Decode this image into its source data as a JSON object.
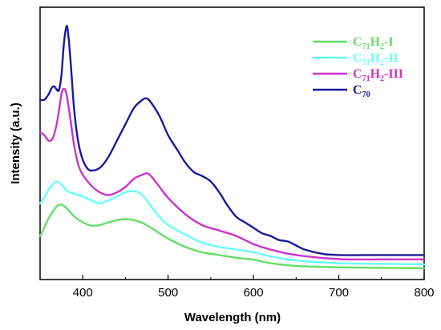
{
  "chart_data": {
    "type": "line",
    "xlabel": "Wavelength (nm)",
    "ylabel": "Intensity (a.u.)",
    "xlim": [
      350,
      800
    ],
    "ylim": [
      0,
      1
    ],
    "x_ticks": [
      400,
      500,
      600,
      700,
      800
    ],
    "y_ticks_shown": false,
    "grid": false,
    "legend": {
      "position": "top-right"
    },
    "series": [
      {
        "name": "C71H2-I",
        "label": {
          "base": "C",
          "sub1": "71",
          "mid": "H",
          "sub2": "2",
          "suffix": "-I"
        },
        "color": "#66dd66",
        "x": [
          350,
          355,
          360,
          365,
          370,
          375,
          380,
          385,
          390,
          395,
          400,
          405,
          410,
          420,
          430,
          440,
          450,
          460,
          470,
          480,
          490,
          500,
          520,
          540,
          560,
          580,
          600,
          620,
          650,
          700,
          750,
          800
        ],
        "y": [
          0.16,
          0.19,
          0.225,
          0.25,
          0.27,
          0.275,
          0.265,
          0.248,
          0.232,
          0.22,
          0.21,
          0.203,
          0.198,
          0.2,
          0.21,
          0.218,
          0.222,
          0.218,
          0.208,
          0.19,
          0.17,
          0.15,
          0.12,
          0.1,
          0.09,
          0.08,
          0.073,
          0.06,
          0.05,
          0.045,
          0.043,
          0.042
        ]
      },
      {
        "name": "C71H2-II",
        "label": {
          "base": "C",
          "sub1": "71",
          "mid": "H",
          "sub2": "2",
          "suffix": "-II"
        },
        "color": "#66ffff",
        "x": [
          350,
          355,
          360,
          365,
          370,
          375,
          380,
          385,
          390,
          395,
          400,
          410,
          420,
          430,
          440,
          450,
          460,
          470,
          480,
          490,
          500,
          520,
          540,
          560,
          580,
          600,
          620,
          650,
          700,
          750,
          800
        ],
        "y": [
          0.28,
          0.3,
          0.33,
          0.35,
          0.36,
          0.35,
          0.33,
          0.32,
          0.315,
          0.31,
          0.305,
          0.29,
          0.28,
          0.29,
          0.305,
          0.32,
          0.325,
          0.31,
          0.27,
          0.23,
          0.2,
          0.165,
          0.135,
          0.12,
          0.11,
          0.1,
          0.085,
          0.07,
          0.06,
          0.058,
          0.056
        ]
      },
      {
        "name": "C71H2-III",
        "label": {
          "base": "C",
          "sub1": "71",
          "mid": "H",
          "sub2": "2",
          "suffix": "-III"
        },
        "color": "#cc33cc",
        "x": [
          350,
          355,
          360,
          365,
          370,
          375,
          378,
          381,
          385,
          390,
          395,
          400,
          410,
          420,
          430,
          440,
          450,
          460,
          470,
          475,
          480,
          490,
          500,
          520,
          540,
          560,
          580,
          600,
          620,
          650,
          700,
          750,
          800
        ],
        "y": [
          0.54,
          0.53,
          0.51,
          0.52,
          0.58,
          0.68,
          0.7,
          0.68,
          0.6,
          0.49,
          0.42,
          0.385,
          0.345,
          0.32,
          0.31,
          0.32,
          0.34,
          0.37,
          0.385,
          0.39,
          0.38,
          0.34,
          0.3,
          0.24,
          0.2,
          0.18,
          0.16,
          0.13,
          0.11,
          0.09,
          0.075,
          0.074,
          0.074
        ]
      },
      {
        "name": "C70",
        "label": {
          "base": "C",
          "sub1": "70",
          "mid": "",
          "sub2": "",
          "suffix": ""
        },
        "color": "#1a1a99",
        "x": [
          350,
          355,
          360,
          363,
          366,
          369,
          372,
          375,
          378,
          381,
          383,
          386,
          390,
          395,
          400,
          405,
          410,
          420,
          430,
          440,
          450,
          460,
          470,
          475,
          480,
          490,
          500,
          510,
          520,
          530,
          540,
          550,
          560,
          570,
          580,
          590,
          600,
          610,
          620,
          630,
          640,
          650,
          660,
          680,
          700,
          750,
          800
        ],
        "y": [
          0.66,
          0.66,
          0.68,
          0.7,
          0.71,
          0.7,
          0.695,
          0.75,
          0.87,
          0.93,
          0.9,
          0.79,
          0.62,
          0.5,
          0.44,
          0.41,
          0.4,
          0.41,
          0.45,
          0.51,
          0.57,
          0.63,
          0.66,
          0.665,
          0.65,
          0.6,
          0.53,
          0.48,
          0.43,
          0.395,
          0.38,
          0.36,
          0.32,
          0.27,
          0.23,
          0.21,
          0.19,
          0.17,
          0.16,
          0.145,
          0.14,
          0.125,
          0.11,
          0.095,
          0.09,
          0.09,
          0.09
        ]
      }
    ]
  }
}
